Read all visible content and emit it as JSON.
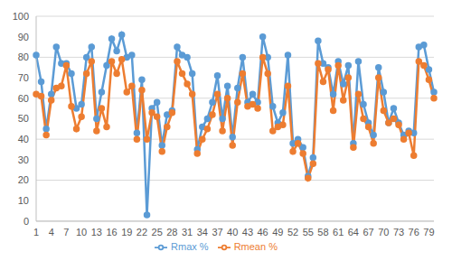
{
  "chart_data": {
    "type": "line",
    "categories": [
      "1",
      null,
      null,
      "4",
      null,
      null,
      "7",
      null,
      null,
      "10",
      null,
      null,
      "13",
      null,
      null,
      "16",
      null,
      null,
      "19",
      null,
      null,
      "22",
      null,
      null,
      "25",
      null,
      null,
      "28",
      null,
      null,
      "31",
      null,
      null,
      "34",
      null,
      null,
      "37",
      null,
      null,
      "40",
      null,
      null,
      "43",
      null,
      null,
      "46",
      null,
      null,
      "49",
      null,
      null,
      "52",
      null,
      null,
      "55",
      null,
      null,
      "58",
      null,
      null,
      "61",
      null,
      null,
      "64",
      null,
      null,
      "67",
      null,
      null,
      "70",
      null,
      null,
      "73",
      null,
      null,
      "76",
      null,
      null,
      "79",
      null
    ],
    "series": [
      {
        "name": "Rmax %",
        "color": "#5b9bd5",
        "marker": "circle",
        "values": [
          81,
          68,
          45,
          62,
          85,
          77,
          77,
          72,
          55,
          57,
          80,
          85,
          50,
          63,
          76,
          89,
          83,
          91,
          80,
          81,
          43,
          69,
          3,
          55,
          58,
          37,
          52,
          54,
          85,
          81,
          80,
          72,
          35,
          46,
          50,
          58,
          71,
          50,
          66,
          41,
          65,
          80,
          58,
          62,
          58,
          90,
          80,
          56,
          48,
          53,
          81,
          38,
          40,
          36,
          22,
          31,
          88,
          77,
          75,
          62,
          78,
          67,
          76,
          38,
          78,
          57,
          48,
          42,
          75,
          63,
          48,
          55,
          48,
          42,
          44,
          43,
          85,
          86,
          74,
          63
        ]
      },
      {
        "name": "Rmean %",
        "color": "#ed7d31",
        "marker": "circle",
        "values": [
          62,
          61,
          42,
          59,
          65,
          66,
          76,
          56,
          45,
          51,
          72,
          78,
          44,
          55,
          46,
          78,
          72,
          79,
          63,
          66,
          40,
          64,
          40,
          53,
          51,
          34,
          46,
          53,
          78,
          72,
          67,
          62,
          33,
          40,
          45,
          52,
          62,
          44,
          60,
          37,
          58,
          72,
          56,
          57,
          55,
          80,
          72,
          44,
          46,
          47,
          66,
          34,
          38,
          33,
          21,
          28,
          77,
          68,
          74,
          54,
          76,
          59,
          70,
          36,
          62,
          50,
          46,
          38,
          70,
          54,
          48,
          50,
          47,
          40,
          43,
          32,
          78,
          76,
          69,
          60
        ]
      }
    ],
    "ylim": [
      0,
      100
    ],
    "yticks": [
      0,
      10,
      20,
      30,
      40,
      50,
      60,
      70,
      80,
      90,
      100
    ],
    "grid": true,
    "legend": "bottom"
  }
}
